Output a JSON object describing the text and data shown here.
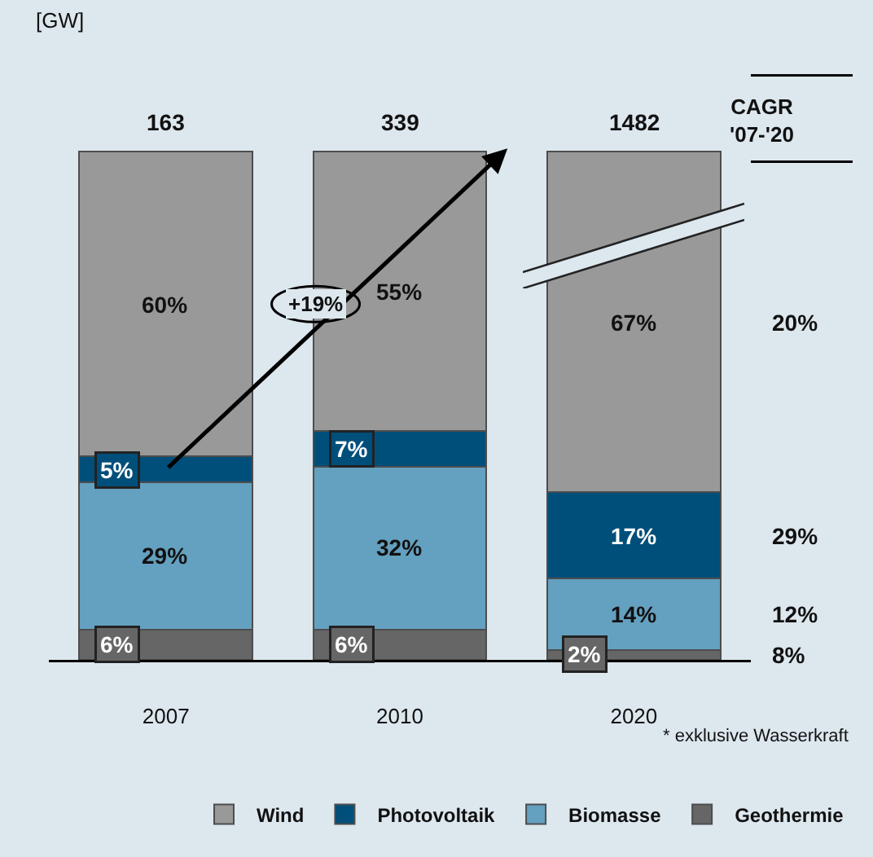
{
  "chart_data": {
    "type": "bar",
    "stacked": true,
    "categories": [
      "2007",
      "2010",
      "2020"
    ],
    "series": [
      {
        "name": "Geothermie",
        "color": "#666666",
        "values": [
          6,
          6,
          2
        ],
        "value_labels": [
          "6%",
          "6%",
          "2%"
        ]
      },
      {
        "name": "Biomasse",
        "color": "#64a0bf",
        "values": [
          29,
          32,
          14
        ],
        "value_labels": [
          "29%",
          "32%",
          "14%"
        ]
      },
      {
        "name": "Photovoltaik",
        "color": "#004f7a",
        "values": [
          5,
          7,
          17
        ],
        "value_labels": [
          "5%",
          "7%",
          "17%"
        ]
      },
      {
        "name": "Wind",
        "color": "#999999",
        "values": [
          60,
          55,
          67
        ],
        "value_labels": [
          "60%",
          "55%",
          "67%"
        ]
      }
    ],
    "annotations": [
      "+19%",
      "CAGR '07-'20",
      "20%",
      "29%",
      "12%",
      "8%",
      "* exklusive Wasserkraft",
      "[GW]",
      {
        "text": "163",
        "x": "2007",
        "y": 100
      },
      {
        "text": "339",
        "x": "2010",
        "y": 100
      },
      {
        "text": "1482",
        "x": "2020",
        "y": 100
      }
    ],
    "legend": "bottom",
    "grid": false
  }
}
